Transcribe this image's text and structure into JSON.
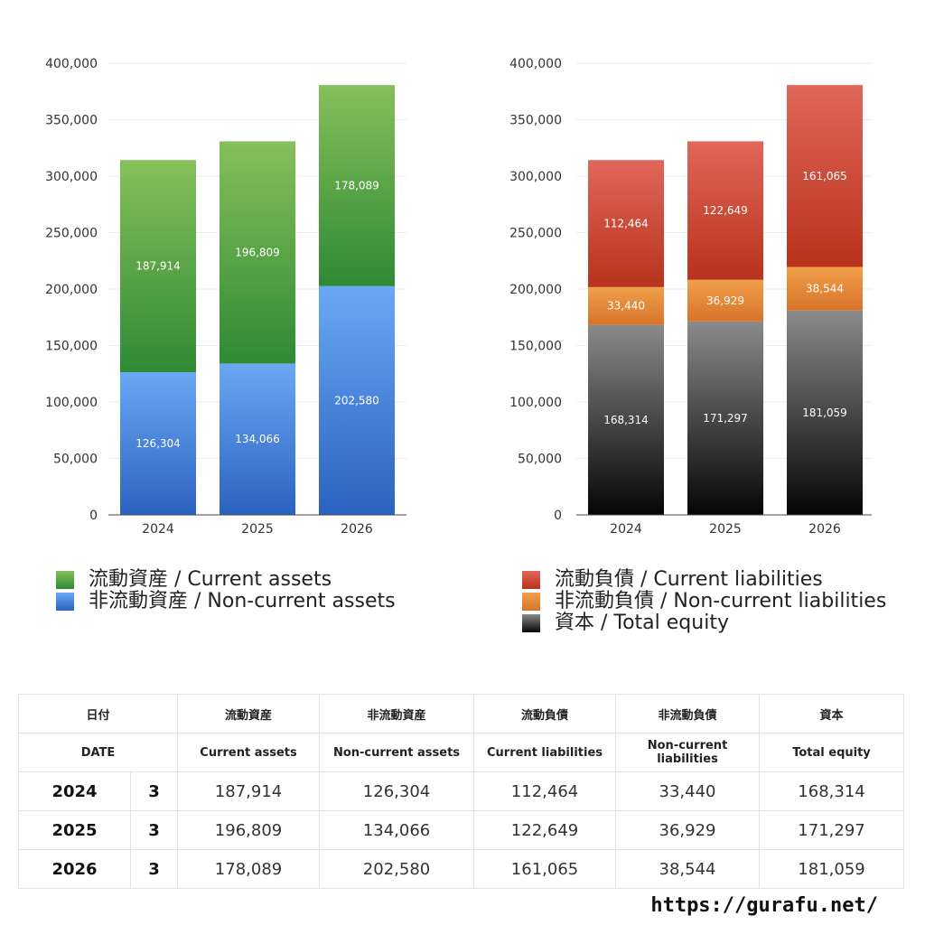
{
  "chart_data": [
    {
      "type": "bar",
      "stacked": true,
      "categories": [
        "2024",
        "2025",
        "2026"
      ],
      "ylim": [
        0,
        400000
      ],
      "yticks": [
        "0",
        "50,000",
        "100,000",
        "150,000",
        "200,000",
        "250,000",
        "300,000",
        "350,000",
        "400,000"
      ],
      "grid": true,
      "legend_placement": "bottom",
      "series": [
        {
          "name": "非流動資産 / Non-current assets",
          "values": [
            126304,
            134066,
            202580
          ],
          "labels": [
            "126,304",
            "134,066",
            "202,580"
          ],
          "color_top": "#6aa8f4",
          "color_bottom": "#2b62c0"
        },
        {
          "name": "流動資産 / Current assets",
          "values": [
            187914,
            196809,
            178089
          ],
          "labels": [
            "187,914",
            "196,809",
            "178,089"
          ],
          "color_top": "#86c05a",
          "color_bottom": "#2f8a35"
        }
      ],
      "legend_order": [
        1,
        0
      ]
    },
    {
      "type": "bar",
      "stacked": true,
      "categories": [
        "2024",
        "2025",
        "2026"
      ],
      "ylim": [
        0,
        400000
      ],
      "yticks": [
        "0",
        "50,000",
        "100,000",
        "150,000",
        "200,000",
        "250,000",
        "300,000",
        "350,000",
        "400,000"
      ],
      "grid": true,
      "legend_placement": "bottom",
      "series": [
        {
          "name": "資本 / Total equity",
          "values": [
            168314,
            171297,
            181059
          ],
          "labels": [
            "168,314",
            "171,297",
            "181,059"
          ],
          "color_top": "#8a8a8a",
          "color_bottom": "#050505"
        },
        {
          "name": "非流動負債 / Non-current liabilities",
          "values": [
            33440,
            36929,
            38544
          ],
          "labels": [
            "33,440",
            "36,929",
            "38,544"
          ],
          "color_top": "#f0a04a",
          "color_bottom": "#d8732a"
        },
        {
          "name": "流動負債 / Current liabilities",
          "values": [
            112464,
            122649,
            161065
          ],
          "labels": [
            "112,464",
            "122,649",
            "161,065"
          ],
          "color_top": "#e0675a",
          "color_bottom": "#b8321c"
        }
      ],
      "legend_order": [
        2,
        1,
        0
      ]
    }
  ],
  "table": {
    "headers_jp": [
      "日付",
      "流動資産",
      "非流動資産",
      "流動負債",
      "非流動負債",
      "資本"
    ],
    "headers_en": [
      "DATE",
      "Current assets",
      "Non-current assets",
      "Current liabilities",
      "Non-current liabilities",
      "Total equity"
    ],
    "rows": [
      {
        "year": "2024",
        "month": "3",
        "values": [
          "187,914",
          "126,304",
          "112,464",
          "33,440",
          "168,314"
        ]
      },
      {
        "year": "2025",
        "month": "3",
        "values": [
          "196,809",
          "134,066",
          "122,649",
          "36,929",
          "171,297"
        ]
      },
      {
        "year": "2026",
        "month": "3",
        "values": [
          "178,089",
          "202,580",
          "161,065",
          "38,544",
          "181,059"
        ]
      }
    ]
  },
  "footer": {
    "url": "https://gurafu.net/"
  }
}
